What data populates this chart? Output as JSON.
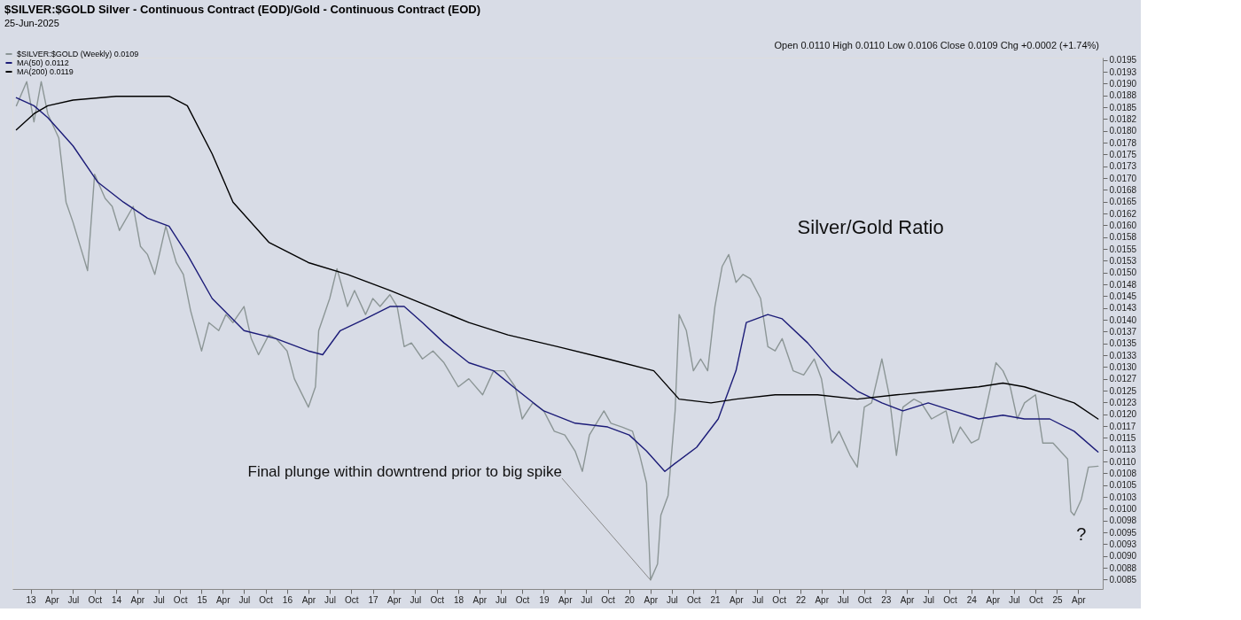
{
  "chart_data": {
    "type": "line",
    "title": "$SILVER:$GOLD Silver - Continuous Contract (EOD)/Gold - Continuous Contract (EOD)",
    "subtitle": "25-Jun-2025",
    "annotations": [
      "Open 0.0110  High 0.0110  Low 0.0106  Close 0.0109  Chg +0.0002 (+1.74%)",
      "Silver/Gold Ratio",
      {
        "text": "Final plunge within downtrend prior to big spike",
        "x": "2020-04-01",
        "y": 0.00849
      },
      {
        "text": "?",
        "x": "2025-03-15",
        "y": 0.00986
      }
    ],
    "legend": "top left",
    "grid": false,
    "line_style": "solid",
    "marker": "none",
    "xlim": [
      "2012-10-15",
      "2025-07-15"
    ],
    "ylim": [
      0.0083,
      0.01955
    ],
    "xticks": [
      {
        "value": "2013-01-01",
        "label": "13"
      },
      {
        "value": "2013-04-01",
        "label": "Apr"
      },
      {
        "value": "2013-07-01",
        "label": "Jul"
      },
      {
        "value": "2013-10-01",
        "label": "Oct"
      },
      {
        "value": "2014-01-01",
        "label": "14"
      },
      {
        "value": "2014-04-01",
        "label": "Apr"
      },
      {
        "value": "2014-07-01",
        "label": "Jul"
      },
      {
        "value": "2014-10-01",
        "label": "Oct"
      },
      {
        "value": "2015-01-01",
        "label": "15"
      },
      {
        "value": "2015-04-01",
        "label": "Apr"
      },
      {
        "value": "2015-07-01",
        "label": "Jul"
      },
      {
        "value": "2015-10-01",
        "label": "Oct"
      },
      {
        "value": "2016-01-01",
        "label": "16"
      },
      {
        "value": "2016-04-01",
        "label": "Apr"
      },
      {
        "value": "2016-07-01",
        "label": "Jul"
      },
      {
        "value": "2016-10-01",
        "label": "Oct"
      },
      {
        "value": "2017-01-01",
        "label": "17"
      },
      {
        "value": "2017-04-01",
        "label": "Apr"
      },
      {
        "value": "2017-07-01",
        "label": "Jul"
      },
      {
        "value": "2017-10-01",
        "label": "Oct"
      },
      {
        "value": "2018-01-01",
        "label": "18"
      },
      {
        "value": "2018-04-01",
        "label": "Apr"
      },
      {
        "value": "2018-07-01",
        "label": "Jul"
      },
      {
        "value": "2018-10-01",
        "label": "Oct"
      },
      {
        "value": "2019-01-01",
        "label": "19"
      },
      {
        "value": "2019-04-01",
        "label": "Apr"
      },
      {
        "value": "2019-07-01",
        "label": "Jul"
      },
      {
        "value": "2019-10-01",
        "label": "Oct"
      },
      {
        "value": "2020-01-01",
        "label": "20"
      },
      {
        "value": "2020-04-01",
        "label": "Apr"
      },
      {
        "value": "2020-07-01",
        "label": "Jul"
      },
      {
        "value": "2020-10-01",
        "label": "Oct"
      },
      {
        "value": "2021-01-01",
        "label": "21"
      },
      {
        "value": "2021-04-01",
        "label": "Apr"
      },
      {
        "value": "2021-07-01",
        "label": "Jul"
      },
      {
        "value": "2021-10-01",
        "label": "Oct"
      },
      {
        "value": "2022-01-01",
        "label": "22"
      },
      {
        "value": "2022-04-01",
        "label": "Apr"
      },
      {
        "value": "2022-07-01",
        "label": "Jul"
      },
      {
        "value": "2022-10-01",
        "label": "Oct"
      },
      {
        "value": "2023-01-01",
        "label": "23"
      },
      {
        "value": "2023-04-01",
        "label": "Apr"
      },
      {
        "value": "2023-07-01",
        "label": "Jul"
      },
      {
        "value": "2023-10-01",
        "label": "Oct"
      },
      {
        "value": "2024-01-01",
        "label": "24"
      },
      {
        "value": "2024-04-01",
        "label": "Apr"
      },
      {
        "value": "2024-07-01",
        "label": "Jul"
      },
      {
        "value": "2024-10-01",
        "label": "Oct"
      },
      {
        "value": "2025-01-01",
        "label": "25"
      },
      {
        "value": "2025-04-01",
        "label": "Apr"
      }
    ],
    "yticks": [
      {
        "value": 0.0085,
        "label": "0.0085"
      },
      {
        "value": 0.00875,
        "label": "0.0088"
      },
      {
        "value": 0.009,
        "label": "0.0090"
      },
      {
        "value": 0.00925,
        "label": "0.0093"
      },
      {
        "value": 0.0095,
        "label": "0.0095"
      },
      {
        "value": 0.00975,
        "label": "0.0098"
      },
      {
        "value": 0.01,
        "label": "0.0100"
      },
      {
        "value": 0.01025,
        "label": "0.0103"
      },
      {
        "value": 0.0105,
        "label": "0.0105"
      },
      {
        "value": 0.01075,
        "label": "0.0108"
      },
      {
        "value": 0.011,
        "label": "0.0110"
      },
      {
        "value": 0.01125,
        "label": "0.0113"
      },
      {
        "value": 0.0115,
        "label": "0.0115"
      },
      {
        "value": 0.01175,
        "label": "0.0117"
      },
      {
        "value": 0.012,
        "label": "0.0120"
      },
      {
        "value": 0.01225,
        "label": "0.0123"
      },
      {
        "value": 0.0125,
        "label": "0.0125"
      },
      {
        "value": 0.01275,
        "label": "0.0127"
      },
      {
        "value": 0.013,
        "label": "0.0130"
      },
      {
        "value": 0.01325,
        "label": "0.0133"
      },
      {
        "value": 0.0135,
        "label": "0.0135"
      },
      {
        "value": 0.01375,
        "label": "0.0137"
      },
      {
        "value": 0.014,
        "label": "0.0140"
      },
      {
        "value": 0.01425,
        "label": "0.0143"
      },
      {
        "value": 0.0145,
        "label": "0.0145"
      },
      {
        "value": 0.01475,
        "label": "0.0148"
      },
      {
        "value": 0.015,
        "label": "0.0150"
      },
      {
        "value": 0.01525,
        "label": "0.0153"
      },
      {
        "value": 0.0155,
        "label": "0.0155"
      },
      {
        "value": 0.01575,
        "label": "0.0158"
      },
      {
        "value": 0.016,
        "label": "0.0160"
      },
      {
        "value": 0.01625,
        "label": "0.0162"
      },
      {
        "value": 0.0165,
        "label": "0.0165"
      },
      {
        "value": 0.01675,
        "label": "0.0168"
      },
      {
        "value": 0.017,
        "label": "0.0170"
      },
      {
        "value": 0.01725,
        "label": "0.0173"
      },
      {
        "value": 0.0175,
        "label": "0.0175"
      },
      {
        "value": 0.01775,
        "label": "0.0178"
      },
      {
        "value": 0.018,
        "label": "0.0180"
      },
      {
        "value": 0.01825,
        "label": "0.0182"
      },
      {
        "value": 0.0185,
        "label": "0.0185"
      },
      {
        "value": 0.01875,
        "label": "0.0188"
      },
      {
        "value": 0.019,
        "label": "0.0190"
      },
      {
        "value": 0.01925,
        "label": "0.0193"
      },
      {
        "value": 0.0195,
        "label": "0.0195"
      }
    ],
    "series": [
      {
        "name": "$SILVER:$GOLD (Weekly) 0.0109",
        "color": "#8c9696",
        "x": [
          "2012-11-01",
          "2012-12-15",
          "2013-01-15",
          "2013-02-15",
          "2013-03-15",
          "2013-05-01",
          "2013-06-01",
          "2013-07-01",
          "2013-08-01",
          "2013-09-01",
          "2013-10-01",
          "2013-11-15",
          "2013-12-15",
          "2014-01-15",
          "2014-03-15",
          "2014-04-15",
          "2014-05-15",
          "2014-06-15",
          "2014-08-01",
          "2014-09-15",
          "2014-10-15",
          "2014-11-15",
          "2015-01-01",
          "2015-02-01",
          "2015-03-15",
          "2015-04-15",
          "2015-05-15",
          "2015-07-01",
          "2015-08-01",
          "2015-09-01",
          "2015-10-15",
          "2015-11-15",
          "2016-01-01",
          "2016-02-01",
          "2016-04-01",
          "2016-05-01",
          "2016-05-15",
          "2016-07-01",
          "2016-08-01",
          "2016-09-15",
          "2016-10-15",
          "2016-12-01",
          "2017-01-01",
          "2017-02-01",
          "2017-03-15",
          "2017-04-15",
          "2017-05-15",
          "2017-06-15",
          "2017-08-01",
          "2017-09-15",
          "2017-11-01",
          "2018-01-01",
          "2018-02-15",
          "2018-04-15",
          "2018-06-01",
          "2018-07-15",
          "2018-09-01",
          "2018-10-01",
          "2018-11-15",
          "2019-01-01",
          "2019-02-15",
          "2019-04-01",
          "2019-05-15",
          "2019-06-15",
          "2019-07-15",
          "2019-09-15",
          "2019-10-15",
          "2019-12-01",
          "2020-01-15",
          "2020-02-15",
          "2020-03-15",
          "2020-04-01",
          "2020-05-01",
          "2020-05-15",
          "2020-06-15",
          "2020-07-15",
          "2020-08-01",
          "2020-09-01",
          "2020-10-01",
          "2020-11-01",
          "2020-12-01",
          "2021-01-01",
          "2021-02-01",
          "2021-03-01",
          "2021-04-01",
          "2021-05-01",
          "2021-06-01",
          "2021-07-15",
          "2021-08-15",
          "2021-09-15",
          "2021-10-15",
          "2021-12-01",
          "2022-01-15",
          "2022-03-01",
          "2022-04-01",
          "2022-05-15",
          "2022-06-15",
          "2022-08-01",
          "2022-09-01",
          "2022-10-01",
          "2022-11-01",
          "2022-12-15",
          "2023-01-15",
          "2023-02-15",
          "2023-03-15",
          "2023-05-01",
          "2023-06-01",
          "2023-07-15",
          "2023-09-15",
          "2023-10-15",
          "2023-11-15",
          "2024-01-01",
          "2024-02-01",
          "2024-03-01",
          "2024-04-15",
          "2024-05-15",
          "2024-06-15",
          "2024-07-15",
          "2024-08-15",
          "2024-10-01",
          "2024-11-01",
          "2024-12-15",
          "2025-01-15",
          "2025-02-15",
          "2025-03-01",
          "2025-03-15",
          "2025-04-15",
          "2025-05-15",
          "2025-06-25"
        ],
        "values": [
          0.01853,
          0.01904,
          0.01819,
          0.01904,
          0.01836,
          0.01785,
          0.01649,
          0.01606,
          0.01555,
          0.01504,
          0.01708,
          0.01657,
          0.0164,
          0.01589,
          0.0164,
          0.01555,
          0.01538,
          0.01496,
          0.01598,
          0.01521,
          0.01496,
          0.01419,
          0.01334,
          0.01394,
          0.01377,
          0.01411,
          0.01394,
          0.01428,
          0.0136,
          0.01326,
          0.01368,
          0.0136,
          0.01334,
          0.01275,
          0.01215,
          0.01258,
          0.01377,
          0.01445,
          0.01508,
          0.01428,
          0.01462,
          0.01411,
          0.01445,
          0.01428,
          0.01453,
          0.01428,
          0.01343,
          0.01351,
          0.01317,
          0.01334,
          0.01309,
          0.01258,
          0.01275,
          0.01241,
          0.01292,
          0.01292,
          0.01258,
          0.0119,
          0.01224,
          0.01207,
          0.01164,
          0.01156,
          0.01122,
          0.01079,
          0.01156,
          0.01207,
          0.01181,
          0.01173,
          0.01164,
          0.01113,
          0.01054,
          0.00849,
          0.00883,
          0.00986,
          0.01028,
          0.01207,
          0.01411,
          0.01377,
          0.01292,
          0.01317,
          0.01292,
          0.01428,
          0.01513,
          0.01538,
          0.01479,
          0.01496,
          0.01487,
          0.01445,
          0.01343,
          0.01334,
          0.0136,
          0.01292,
          0.01283,
          0.01317,
          0.01275,
          0.01139,
          0.01164,
          0.01113,
          0.01088,
          0.01215,
          0.01224,
          0.01317,
          0.01241,
          0.01113,
          0.01215,
          0.01232,
          0.01224,
          0.0119,
          0.01207,
          0.01139,
          0.01173,
          0.01139,
          0.01147,
          0.01207,
          0.01309,
          0.01292,
          0.01258,
          0.0119,
          0.01224,
          0.01241,
          0.01139,
          0.01139,
          0.01122,
          0.01105,
          0.00994,
          0.00986,
          0.0102,
          0.01088,
          0.0109
        ]
      },
      {
        "name": "MA(50) 0.0112",
        "color": "#1c1c78",
        "x": [
          "2012-11-01",
          "2013-01-15",
          "2013-03-15",
          "2013-07-01",
          "2013-10-15",
          "2014-02-01",
          "2014-05-15",
          "2014-08-15",
          "2014-11-01",
          "2015-02-15",
          "2015-07-01",
          "2015-11-15",
          "2016-04-01",
          "2016-06-01",
          "2016-08-15",
          "2016-12-01",
          "2017-03-15",
          "2017-05-15",
          "2017-08-01",
          "2017-11-01",
          "2018-02-15",
          "2018-06-01",
          "2018-09-15",
          "2019-01-01",
          "2019-05-15",
          "2019-10-01",
          "2020-01-01",
          "2020-03-15",
          "2020-06-01",
          "2020-07-15",
          "2020-10-15",
          "2021-01-15",
          "2021-04-01",
          "2021-05-15",
          "2021-08-15",
          "2021-10-15",
          "2022-02-01",
          "2022-05-15",
          "2022-09-01",
          "2022-12-15",
          "2023-03-15",
          "2023-07-01",
          "2023-10-15",
          "2024-02-01",
          "2024-05-15",
          "2024-08-15",
          "2024-12-01",
          "2025-03-15",
          "2025-06-25"
        ],
        "values": [
          0.0187,
          0.01853,
          0.01828,
          0.01768,
          0.01691,
          0.01649,
          0.01615,
          0.01598,
          0.01538,
          0.01445,
          0.01377,
          0.0136,
          0.01334,
          0.01326,
          0.01377,
          0.01402,
          0.01428,
          0.01428,
          0.01394,
          0.01351,
          0.01309,
          0.01292,
          0.01249,
          0.01207,
          0.01181,
          0.01173,
          0.01156,
          0.01122,
          0.01079,
          0.01096,
          0.0113,
          0.0119,
          0.01292,
          0.01394,
          0.01411,
          0.01402,
          0.01351,
          0.01292,
          0.01249,
          0.01224,
          0.01207,
          0.01224,
          0.01207,
          0.0119,
          0.01198,
          0.0119,
          0.0119,
          0.01164,
          0.0112
        ]
      },
      {
        "name": "MA(200) 0.0119",
        "color": "#000000",
        "x": [
          "2012-11-01",
          "2013-01-15",
          "2013-03-15",
          "2013-07-01",
          "2014-01-01",
          "2014-08-15",
          "2014-11-01",
          "2015-02-15",
          "2015-05-15",
          "2015-10-15",
          "2016-04-01",
          "2016-09-15",
          "2017-03-15",
          "2017-09-01",
          "2018-02-15",
          "2018-08-01",
          "2019-03-01",
          "2019-10-01",
          "2020-04-15",
          "2020-08-01",
          "2020-12-15",
          "2021-04-01",
          "2021-09-15",
          "2022-03-15",
          "2022-09-01",
          "2023-02-15",
          "2023-08-01",
          "2024-02-01",
          "2024-05-15",
          "2024-08-15",
          "2024-12-01",
          "2025-03-15",
          "2025-06-25"
        ],
        "values": [
          0.01802,
          0.01836,
          0.01853,
          0.01865,
          0.01873,
          0.01873,
          0.01853,
          0.01751,
          0.01649,
          0.01564,
          0.01521,
          0.01496,
          0.01462,
          0.01428,
          0.01394,
          0.01368,
          0.01343,
          0.01317,
          0.01292,
          0.01232,
          0.01224,
          0.01232,
          0.01241,
          0.01241,
          0.01232,
          0.01241,
          0.01249,
          0.01258,
          0.01266,
          0.01258,
          0.01241,
          0.01224,
          0.0119
        ]
      }
    ]
  }
}
